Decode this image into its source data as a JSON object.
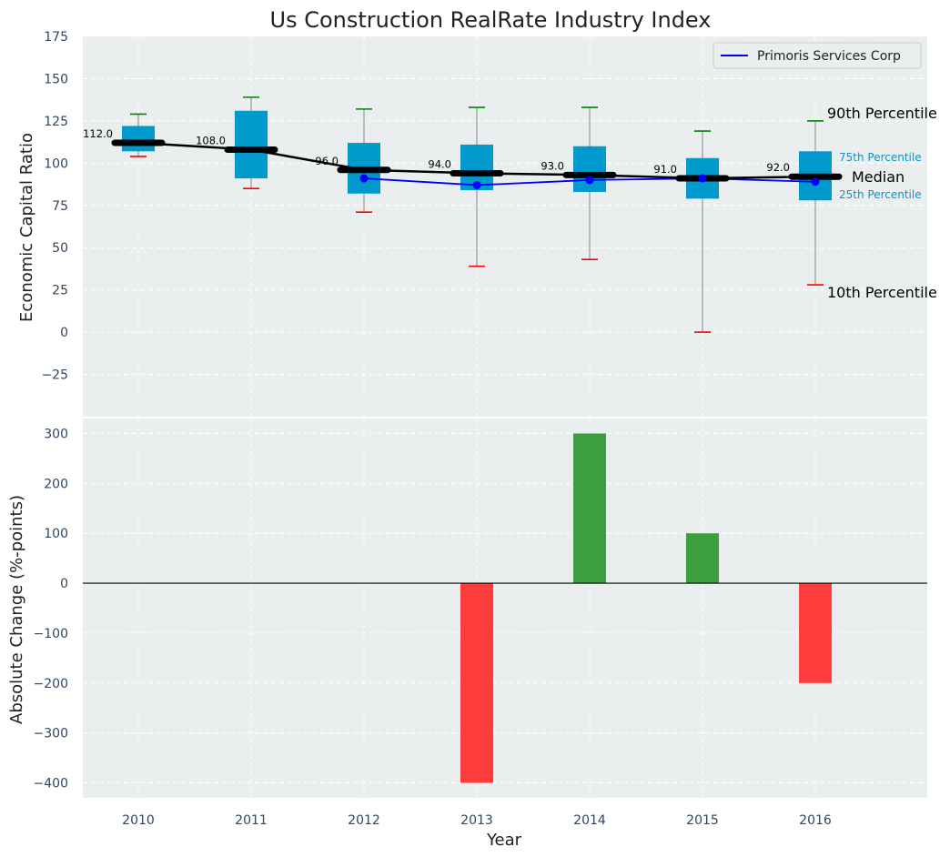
{
  "chart_data": {
    "type": "box",
    "title": "Us Construction RealRate Industry Index",
    "xlabel": "Year",
    "categories": [
      "2010",
      "2011",
      "2012",
      "2013",
      "2014",
      "2015",
      "2016"
    ],
    "top_panel": {
      "ylabel": "Economic Capital Ratio",
      "ylim": [
        -50,
        175
      ],
      "yticks": [
        -25,
        0,
        25,
        50,
        75,
        100,
        125,
        150,
        175
      ],
      "grid": true,
      "percentile_10": [
        104,
        85,
        71,
        39,
        43,
        0,
        28
      ],
      "percentile_25": [
        107,
        91,
        82,
        84,
        83,
        79,
        78
      ],
      "median": [
        112,
        108,
        96,
        94,
        93,
        91,
        92
      ],
      "percentile_75": [
        122,
        131,
        112,
        111,
        110,
        103,
        107
      ],
      "percentile_90": [
        129,
        139,
        132,
        133,
        133,
        119,
        125
      ],
      "median_labels": [
        "112.0",
        "108.0",
        "96.0",
        "94.0",
        "93.0",
        "91.0",
        "92.0"
      ],
      "series": [
        {
          "name": "Primoris Services Corp",
          "values": [
            null,
            null,
            91,
            87,
            90,
            91,
            89
          ]
        }
      ],
      "legend_position": "top-right",
      "annotations": {
        "p90": "90th Percentile",
        "p75": "75th Percentile",
        "median": "Median",
        "p25": "25th Percentile",
        "p10": "10th Percentile"
      }
    },
    "bottom_panel": {
      "ylabel": "Absolute Change (%-points)",
      "ylim": [
        -430,
        330
      ],
      "yticks": [
        -400,
        -300,
        -200,
        -100,
        0,
        100,
        200,
        300
      ],
      "grid": true,
      "values": [
        null,
        null,
        null,
        -400,
        300,
        100,
        -200
      ]
    }
  },
  "colors": {
    "panel_bg": "#eaeeee",
    "box": "#0099cc",
    "median_line": "#000000",
    "company_line": "#0000ff",
    "whisker_high": "#008000",
    "whisker_low": "#ff0000",
    "bar_positive": "#3c9e3c",
    "bar_negative": "#ff3c3c"
  }
}
